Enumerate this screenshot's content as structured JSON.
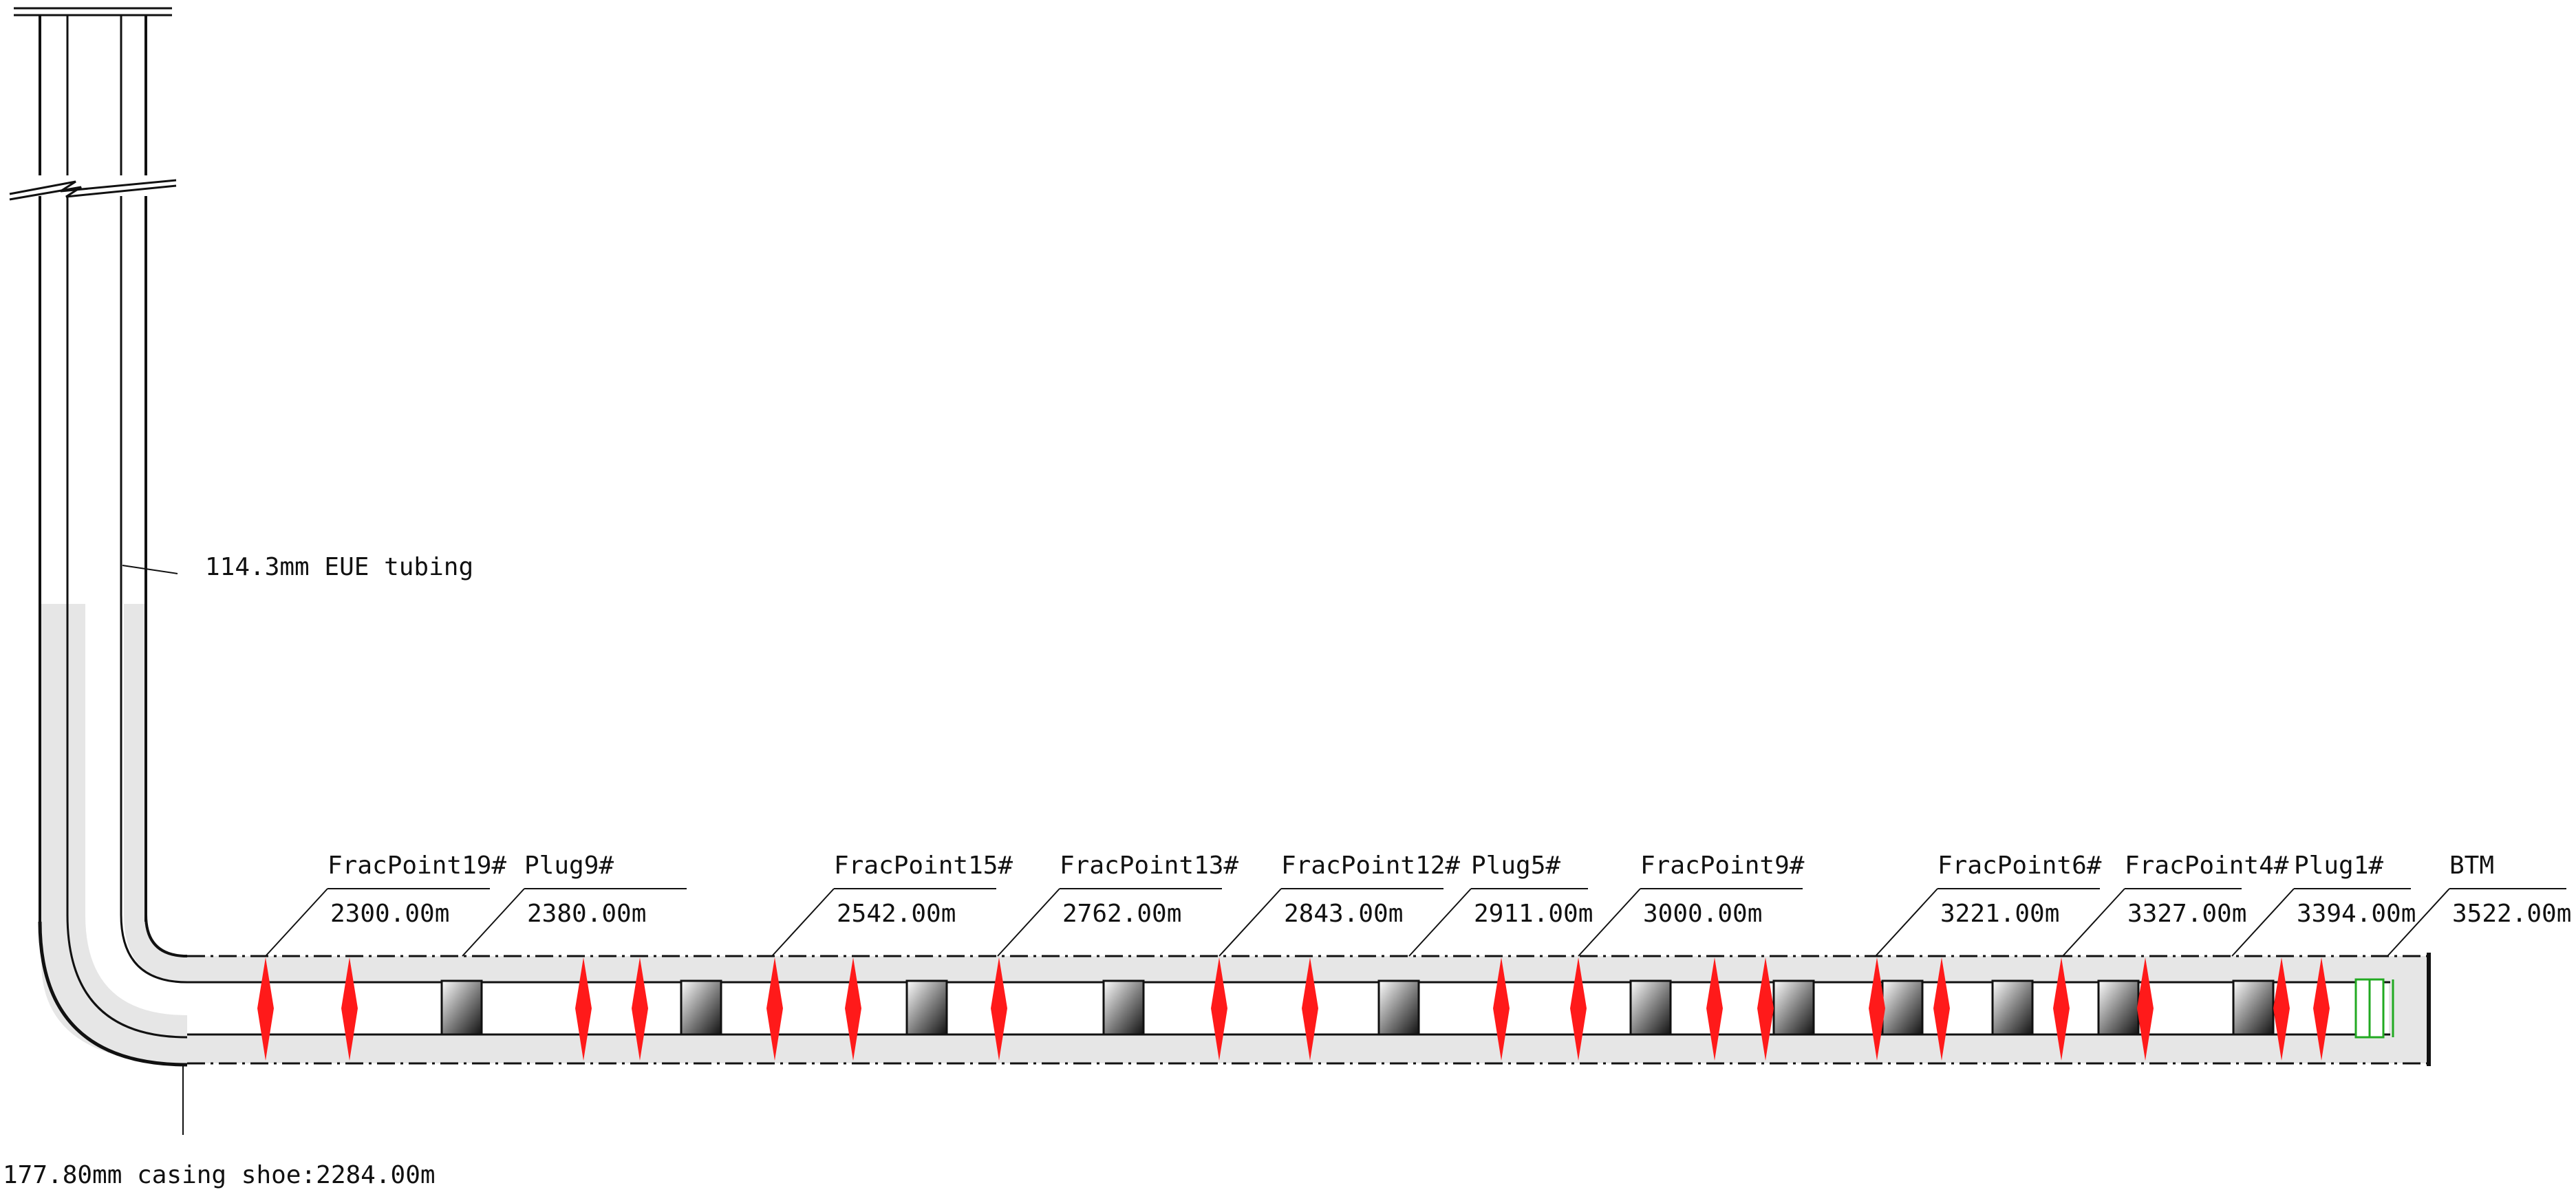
{
  "tubing_label": "114.3mm EUE tubing",
  "casing_label": "177.80mm casing shoe:2284.00m",
  "colors": {
    "outline": "#111111",
    "annulus_fill": "#e6e6e6",
    "frac_point": "#ff1a1a",
    "bottom_tool": "#22aa22"
  },
  "callouts": [
    {
      "name": "FracPoint19#",
      "depth": "2300.00m"
    },
    {
      "name": "Plug9#",
      "depth": "2380.00m"
    },
    {
      "name": "FracPoint15#",
      "depth": "2542.00m"
    },
    {
      "name": "FracPoint13#",
      "depth": "2762.00m"
    },
    {
      "name": "FracPoint12#",
      "depth": "2843.00m"
    },
    {
      "name": "Plug5#",
      "depth": "2911.00m"
    },
    {
      "name": "FracPoint9#",
      "depth": "3000.00m"
    },
    {
      "name": "FracPoint6#",
      "depth": "3221.00m"
    },
    {
      "name": "FracPoint4#",
      "depth": "3327.00m"
    },
    {
      "name": "Plug1#",
      "depth": "3394.00m"
    },
    {
      "name": "BTM",
      "depth": "3522.00m"
    }
  ],
  "frac_point_count": 19,
  "plug_count": 9
}
